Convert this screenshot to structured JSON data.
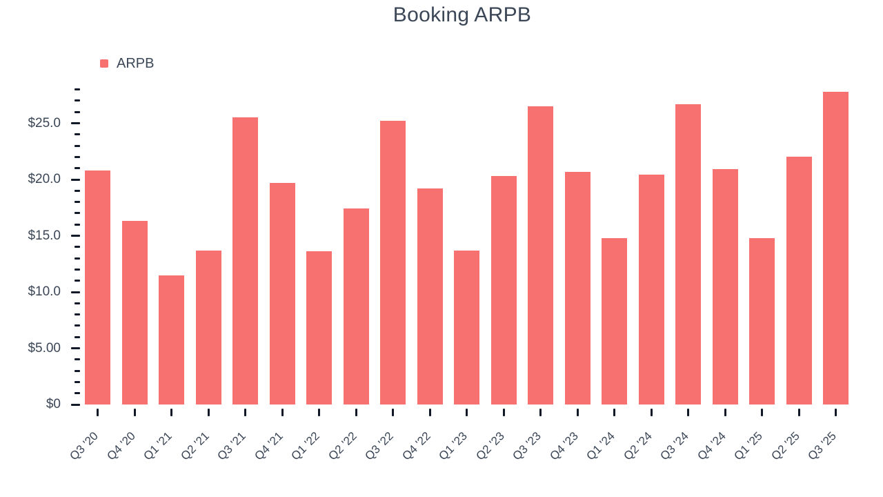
{
  "chart": {
    "title": "Booking ARPB",
    "legend_label": "ARPB",
    "colors": {
      "bar": "#f87171",
      "text": "#3b4656",
      "tick": "#111827",
      "background": "#ffffff"
    }
  },
  "chart_data": {
    "type": "bar",
    "title": "Booking ARPB",
    "legend": [
      "ARPB"
    ],
    "legend_position": "top-left",
    "grid": false,
    "categories": [
      "Q3 '20",
      "Q4 '20",
      "Q1 '21",
      "Q2 '21",
      "Q3 '21",
      "Q4 '21",
      "Q1 '22",
      "Q2 '22",
      "Q3 '22",
      "Q4 '22",
      "Q1 '23",
      "Q2 '23",
      "Q3 '23",
      "Q4 '23",
      "Q1 '24",
      "Q2 '24",
      "Q3 '24",
      "Q4 '24",
      "Q1 '25",
      "Q2 '25",
      "Q3 '25"
    ],
    "series": [
      {
        "name": "ARPB",
        "values": [
          20.8,
          16.3,
          11.5,
          13.7,
          25.5,
          19.7,
          13.6,
          17.4,
          25.2,
          19.2,
          13.7,
          20.3,
          26.5,
          20.7,
          14.8,
          20.4,
          26.7,
          20.9,
          14.8,
          22.0,
          27.8
        ]
      }
    ],
    "xlabel": "",
    "ylabel": "",
    "ylim": [
      0,
      28
    ],
    "y_minor_step": 1,
    "y_major_step": 5,
    "y_tick_labels": {
      "0": "$0",
      "5": "$5.00",
      "10": "$10.0",
      "15": "$15.0",
      "20": "$20.0",
      "25": "$25.0"
    }
  }
}
